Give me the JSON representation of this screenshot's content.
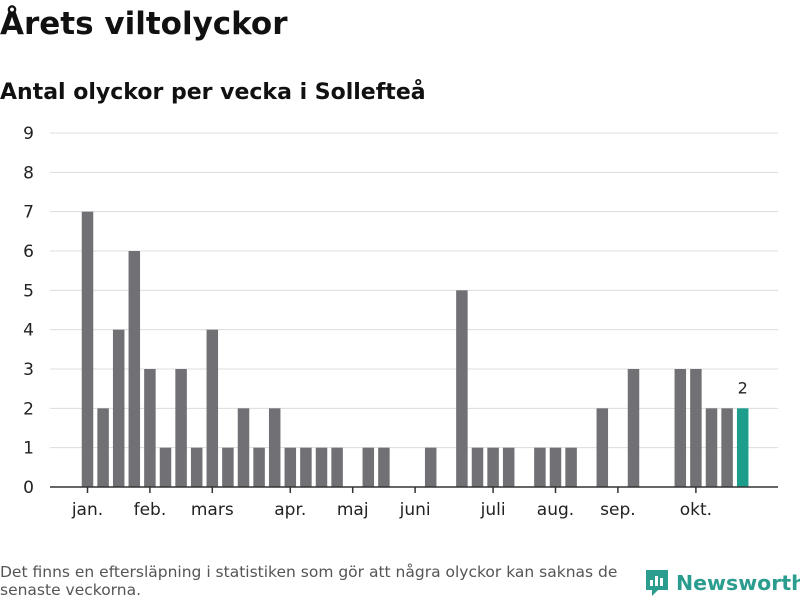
{
  "header": {
    "title": "Årets viltolyckor",
    "subtitle": "Antal olyckor per vecka i Sollefteå"
  },
  "chart_data": {
    "type": "bar",
    "title": "Årets viltolyckor",
    "subtitle": "Antal olyckor per vecka i Sollefteå",
    "xlabel": "",
    "ylabel": "",
    "ylim": [
      0,
      9
    ],
    "yticks": [
      0,
      1,
      2,
      3,
      4,
      5,
      6,
      7,
      8,
      9
    ],
    "grid": true,
    "x_unit": "week",
    "weeks": [
      1,
      2,
      3,
      4,
      5,
      6,
      7,
      8,
      9,
      10,
      11,
      12,
      13,
      14,
      15,
      16,
      17,
      18,
      19,
      20,
      21,
      22,
      23,
      24,
      25,
      26,
      27,
      28,
      29,
      30,
      31,
      32,
      33,
      34,
      35,
      36,
      37,
      38,
      39,
      40,
      41,
      42,
      43
    ],
    "values": [
      7,
      2,
      4,
      6,
      3,
      1,
      3,
      1,
      4,
      1,
      2,
      1,
      2,
      1,
      1,
      1,
      1,
      0,
      1,
      1,
      0,
      0,
      1,
      0,
      5,
      1,
      1,
      1,
      0,
      1,
      1,
      1,
      0,
      2,
      0,
      3,
      0,
      0,
      3,
      3,
      2,
      2,
      2
    ],
    "month_ticks": [
      {
        "label": "jan.",
        "week": 1
      },
      {
        "label": "feb.",
        "week": 5
      },
      {
        "label": "mars",
        "week": 9
      },
      {
        "label": "apr.",
        "week": 14
      },
      {
        "label": "maj",
        "week": 18
      },
      {
        "label": "juni",
        "week": 22
      },
      {
        "label": "juli",
        "week": 27
      },
      {
        "label": "aug.",
        "week": 31
      },
      {
        "label": "sep.",
        "week": 35
      },
      {
        "label": "okt.",
        "week": 40
      }
    ],
    "highlight": {
      "week": 43,
      "value": 2,
      "label": "2"
    },
    "colors": {
      "bar": "#717075",
      "highlight": "#1d9e8d",
      "grid": "#dcdcdc",
      "axis": "#333333"
    }
  },
  "footer": {
    "note": "Det finns en eftersläpning i statistiken som gör att några olyckor kan saknas de senaste veckorna.",
    "brand": "Newsworthy",
    "brand_color": "#2a9d8f"
  }
}
